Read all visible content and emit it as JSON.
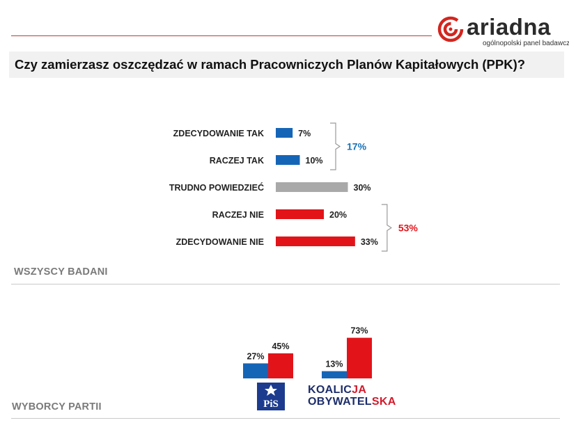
{
  "brand": {
    "name": "ariadna",
    "tagline": "ogólnopolski panel badawczy",
    "colors": {
      "logo_red": "#d2261f",
      "logo_dark": "#2b2b2b"
    }
  },
  "title": "Czy zamierzasz oszczędzać w ramach Pracowniczych Planów Kapitałowych (PPK)?",
  "sections": {
    "all": "WSZYSCY BADANI",
    "voters": "WYBORCY PARTII"
  },
  "party_logos": {
    "pis": "PiS",
    "ko_line1a": "KOALIC",
    "ko_line1b": "JA",
    "ko_line2a": "OBYWATEL",
    "ko_line2b": "SKA"
  },
  "chart_data": [
    {
      "type": "bar",
      "orientation": "horizontal",
      "categories": [
        "ZDECYDOWANIE TAK",
        "RACZEJ TAK",
        "TRUDNO POWIEDZIEĆ",
        "RACZEJ NIE",
        "ZDECYDOWANIE NIE"
      ],
      "values": [
        7,
        10,
        30,
        20,
        33
      ],
      "labels": [
        "7%",
        "10%",
        "30%",
        "20%",
        "33%"
      ],
      "colors": [
        "#1565b7",
        "#1565b7",
        "#a9a9a9",
        "#e2141a",
        "#e2141a"
      ],
      "groups": [
        {
          "label": "17%",
          "color": "#1a73b8",
          "from": 0,
          "to": 1
        },
        {
          "label": "53%",
          "color": "#e2141a",
          "from": 3,
          "to": 4
        }
      ],
      "xlim": [
        0,
        100
      ]
    },
    {
      "type": "bar",
      "categories": [
        "PiS",
        "Koalicja Obywatelska"
      ],
      "series": [
        {
          "values": [
            27,
            13
          ],
          "labels": [
            "27%",
            "13%"
          ],
          "color": "#1565b7"
        },
        {
          "values": [
            45,
            73
          ],
          "labels": [
            "45%",
            "73%"
          ],
          "color": "#e2141a"
        }
      ],
      "ylim": [
        0,
        100
      ]
    }
  ]
}
